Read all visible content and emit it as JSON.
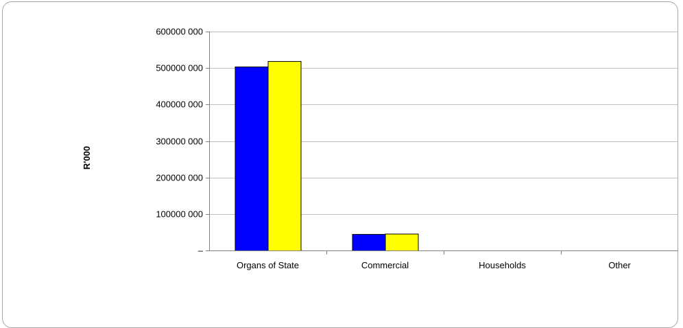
{
  "chart_data": {
    "type": "bar",
    "title": "",
    "xlabel": "",
    "ylabel": "R'000",
    "categories": [
      "Organs of State",
      "Commercial",
      "Households",
      "Other"
    ],
    "series": [
      {
        "values": [
          504000000,
          45000000,
          0,
          0
        ],
        "color": "#0000ff"
      },
      {
        "values": [
          519000000,
          46000000,
          0,
          0
        ],
        "color": "#ffff00"
      }
    ],
    "ylim": [
      0,
      600000000
    ],
    "yticks": [
      0,
      100000000,
      200000000,
      300000000,
      400000000,
      500000000,
      600000000
    ],
    "ytick_labels": [
      "–",
      "100000 000",
      "200000 000",
      "300000 000",
      "400000 000",
      "500000 000",
      "600000 000"
    ],
    "grid": true,
    "legend": "none"
  }
}
